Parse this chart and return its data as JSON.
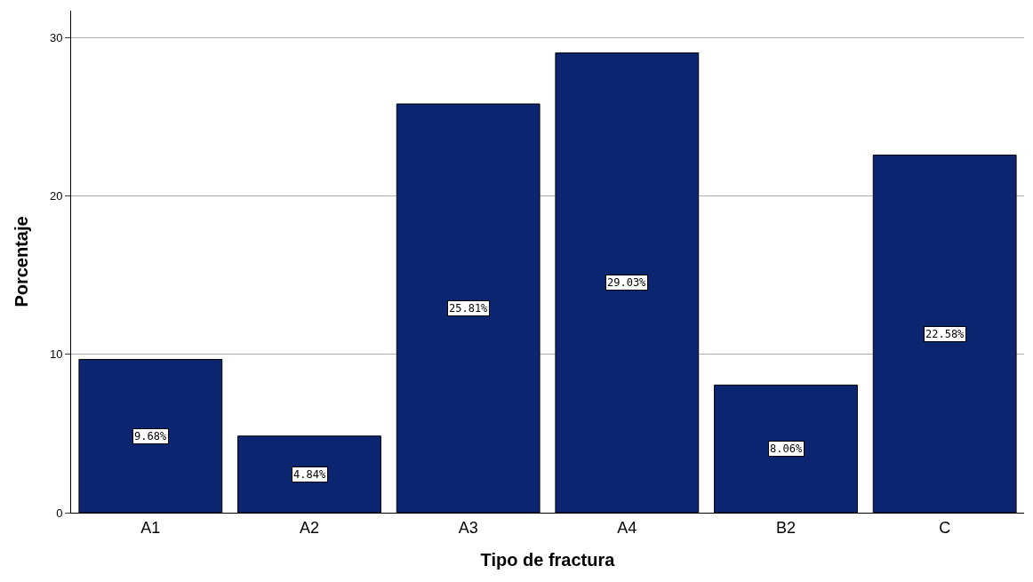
{
  "chart_data": {
    "type": "bar",
    "xlabel": "Tipo de fractura",
    "ylabel": "Porcentaje",
    "categories": [
      "A1",
      "A2",
      "A3",
      "A4",
      "B2",
      "C"
    ],
    "values": [
      9.68,
      4.84,
      25.81,
      29.03,
      8.06,
      22.58
    ],
    "value_labels": [
      "9.68%",
      "4.84%",
      "25.81%",
      "29.03%",
      "8.06%",
      "22.58%"
    ],
    "color": "#0c2570",
    "ylim": [
      0,
      31.7
    ],
    "yticks": [
      0,
      10,
      20,
      30
    ],
    "grid": "y"
  }
}
